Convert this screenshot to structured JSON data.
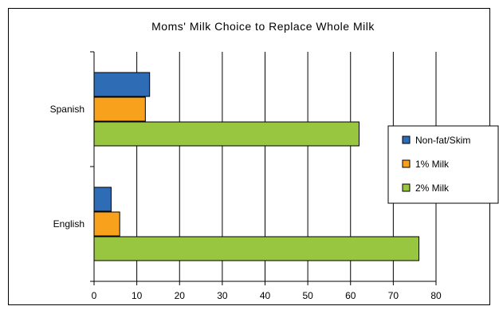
{
  "chart_data": {
    "type": "bar",
    "orientation": "horizontal",
    "title": "Moms' Milk Choice to Replace Whole Milk",
    "categories": [
      "Spanish",
      "English"
    ],
    "series": [
      {
        "name": "Non-fat/Skim",
        "color": "#2e6db5",
        "values": [
          13,
          4
        ]
      },
      {
        "name": "1% Milk",
        "color": "#f7a11d",
        "values": [
          12,
          6
        ]
      },
      {
        "name": "2% Milk",
        "color": "#99c640",
        "values": [
          62,
          76
        ]
      }
    ],
    "xlabel": "",
    "ylabel": "",
    "xlim": [
      0,
      80
    ],
    "xticks": [
      0,
      10,
      20,
      30,
      40,
      50,
      60,
      70,
      80
    ],
    "grid": "vertical",
    "legend_position": "right"
  }
}
